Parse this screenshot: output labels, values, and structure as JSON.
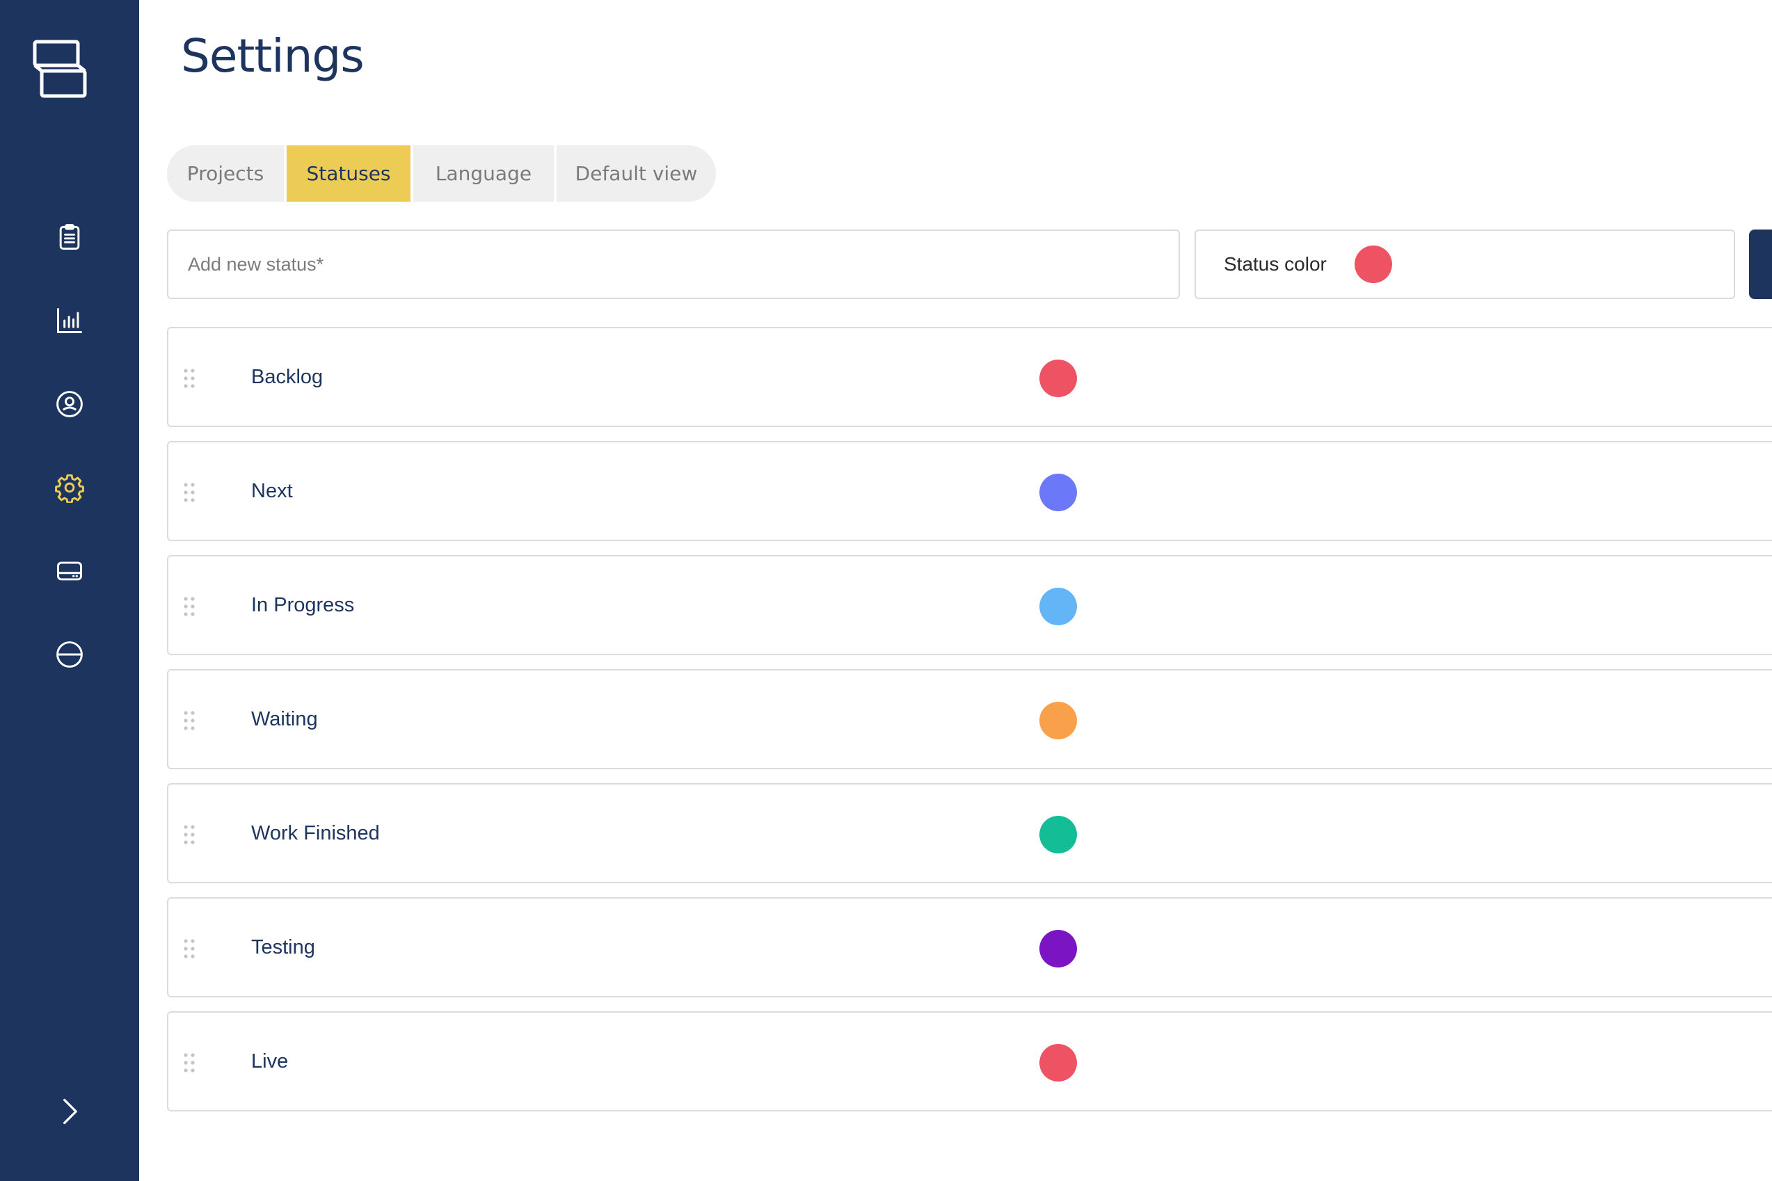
{
  "page": {
    "title": "Settings"
  },
  "sidebar": {
    "logo_icon": "app-logo-icon",
    "items": [
      {
        "name": "tasks",
        "icon": "clipboard-icon",
        "active": false
      },
      {
        "name": "reports",
        "icon": "bar-chart-icon",
        "active": false
      },
      {
        "name": "profile",
        "icon": "user-circle-icon",
        "active": false
      },
      {
        "name": "settings",
        "icon": "gear-icon",
        "active": true
      },
      {
        "name": "devices",
        "icon": "drive-icon",
        "active": false
      },
      {
        "name": "logout",
        "icon": "circle-minus-icon",
        "active": false
      }
    ],
    "expand_icon": "chevron-right-icon",
    "icon_color": "#ffffff",
    "active_icon_color": "#edcc55"
  },
  "tabs": [
    {
      "label": "Projects",
      "active": false
    },
    {
      "label": "Statuses",
      "active": true
    },
    {
      "label": "Language",
      "active": false
    },
    {
      "label": "Default view",
      "active": false
    }
  ],
  "new_status": {
    "placeholder": "Add new status*",
    "value": "",
    "color_label": "Status color",
    "color": "#ee5364"
  },
  "statuses": [
    {
      "name": "Backlog",
      "color": "#ee5364"
    },
    {
      "name": "Next",
      "color": "#6b78f7"
    },
    {
      "name": "In Progress",
      "color": "#64b5f6"
    },
    {
      "name": "Waiting",
      "color": "#f9a04b"
    },
    {
      "name": "Work Finished",
      "color": "#13bd95"
    },
    {
      "name": "Testing",
      "color": "#7b15c4"
    },
    {
      "name": "Live",
      "color": "#ee5364"
    }
  ],
  "theme": {
    "sidebar_bg": "#1d355e",
    "accent": "#edcc55",
    "text_primary": "#1d355e"
  }
}
